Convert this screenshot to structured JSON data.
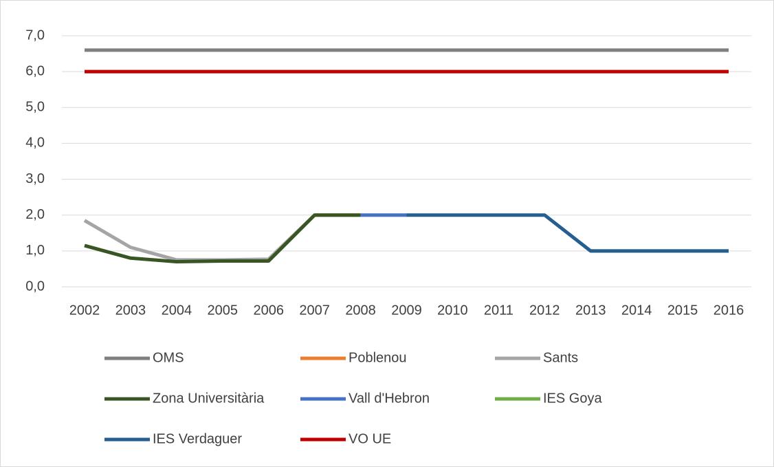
{
  "chart_data": {
    "type": "line",
    "categories": [
      "2002",
      "2003",
      "2004",
      "2005",
      "2006",
      "2007",
      "2008",
      "2009",
      "2010",
      "2011",
      "2012",
      "2013",
      "2014",
      "2015",
      "2016"
    ],
    "ylim": [
      0,
      7
    ],
    "yticks": [
      {
        "value": 0,
        "label": "0,0"
      },
      {
        "value": 1,
        "label": "1,0"
      },
      {
        "value": 2,
        "label": "2,0"
      },
      {
        "value": 3,
        "label": "3,0"
      },
      {
        "value": 4,
        "label": "4,0"
      },
      {
        "value": 5,
        "label": "5,0"
      },
      {
        "value": 6,
        "label": "6,0"
      },
      {
        "value": 7,
        "label": "7,0"
      }
    ],
    "grid": true,
    "series": [
      {
        "name": "OMS",
        "color": "#7f7f7f",
        "values": [
          6.6,
          6.6,
          6.6,
          6.6,
          6.6,
          6.6,
          6.6,
          6.6,
          6.6,
          6.6,
          6.6,
          6.6,
          6.6,
          6.6,
          6.6
        ]
      },
      {
        "name": "Poblenou",
        "color": "#ed7d31",
        "values": [
          null,
          null,
          null,
          null,
          null,
          2,
          2,
          null,
          null,
          null,
          null,
          null,
          null,
          null,
          null
        ]
      },
      {
        "name": "Sants",
        "color": "#a5a5a5",
        "values": [
          1.85,
          1.1,
          0.75,
          0.75,
          0.77,
          2,
          null,
          null,
          null,
          null,
          null,
          null,
          null,
          null,
          null
        ]
      },
      {
        "name": "Zona Universitària",
        "color": "#375623",
        "values": [
          1.15,
          0.8,
          0.7,
          0.72,
          0.72,
          2,
          2,
          null,
          null,
          null,
          null,
          null,
          null,
          null,
          null
        ]
      },
      {
        "name": "Vall d'Hebron",
        "color": "#4472c4",
        "values": [
          null,
          null,
          null,
          null,
          null,
          null,
          2,
          2,
          null,
          null,
          null,
          null,
          null,
          null,
          null
        ]
      },
      {
        "name": "IES Goya",
        "color": "#70ad47",
        "values": [
          null,
          null,
          null,
          null,
          null,
          null,
          null,
          null,
          null,
          null,
          null,
          1,
          1,
          1,
          1
        ]
      },
      {
        "name": "IES Verdaguer",
        "color": "#255e91",
        "values": [
          null,
          null,
          null,
          null,
          null,
          null,
          null,
          2,
          2,
          2,
          2,
          1,
          1,
          1,
          1
        ]
      },
      {
        "name": "VO UE",
        "color": "#c00000",
        "values": [
          6,
          6,
          6,
          6,
          6,
          6,
          6,
          6,
          6,
          6,
          6,
          6,
          6,
          6,
          6
        ]
      }
    ]
  }
}
